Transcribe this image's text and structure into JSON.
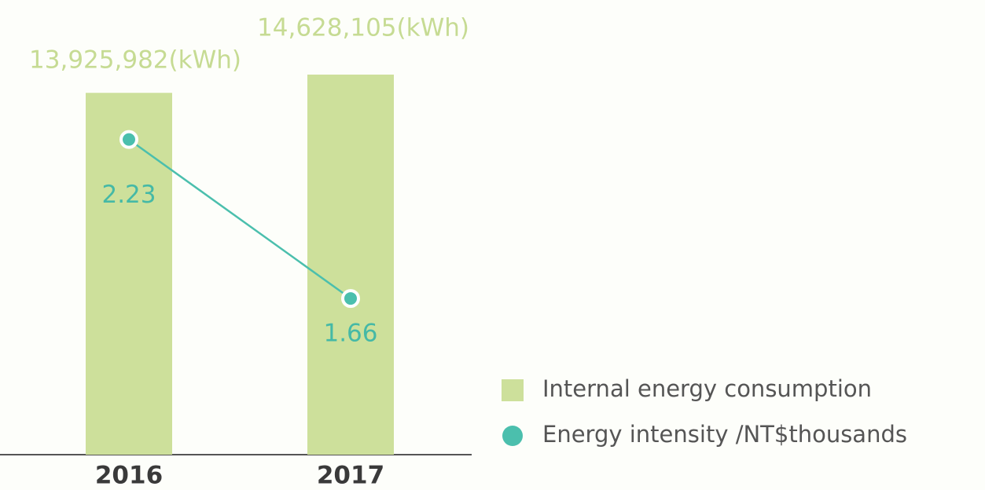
{
  "chart_data": {
    "type": "bar_line",
    "categories": [
      "2016",
      "2017"
    ],
    "series": [
      {
        "name": "Internal energy consumption",
        "type": "bar",
        "color": "#cde09b",
        "values": [
          13925982,
          14628105
        ],
        "value_labels": [
          "13,925,982(kWh)",
          "14,628,105(kWh)"
        ]
      },
      {
        "name": "Energy intensity /NT$thousands",
        "type": "line",
        "axis": "y2",
        "color": "#4bbfad",
        "values": [
          2.23,
          1.66
        ]
      }
    ],
    "ylim": [
      0,
      17500000
    ],
    "y2lim": [
      1.1,
      2.73
    ],
    "grid": false,
    "legend": "lower right"
  }
}
